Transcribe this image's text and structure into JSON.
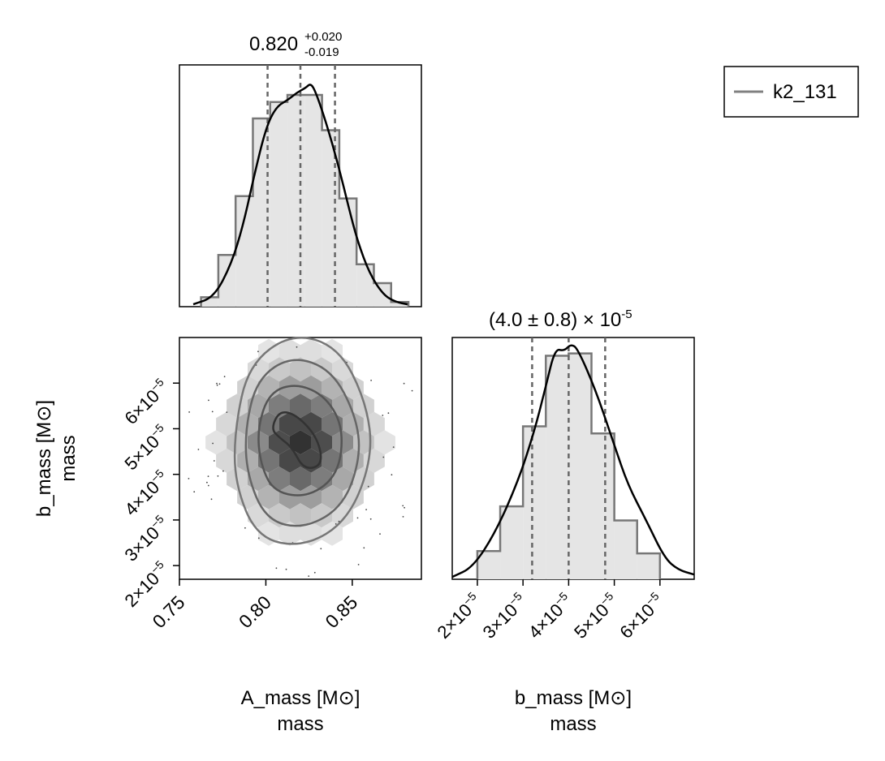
{
  "legend": {
    "label": "k2_131",
    "line_color": "#808080"
  },
  "colors": {
    "hist_fill": "#e5e5e5",
    "hist_edge": "#777777",
    "kde": "#000000",
    "quantile": "#666666",
    "frame": "#000000"
  },
  "labels": {
    "x_axis_a": {
      "line1": "A_mass [M⊙]",
      "line2": "mass"
    },
    "x_axis_b": {
      "line1": "b_mass [M⊙]",
      "line2": "mass"
    },
    "y_axis_b": {
      "line1": "b_mass [M⊙]",
      "line2": "mass"
    }
  },
  "titles": {
    "a_mass": {
      "base": "0.820",
      "sup": "+0.020",
      "sub": "-0.019"
    },
    "b_mass": {
      "base": "(4.0 ± 0.8) × 10",
      "sup": "-5"
    }
  },
  "ticks": {
    "a_mass": [
      "0.75",
      "0.80",
      "0.85"
    ],
    "b_mass": [
      {
        "mant": "2×10",
        "exp": "−5"
      },
      {
        "mant": "3×10",
        "exp": "−5"
      },
      {
        "mant": "4×10",
        "exp": "−5"
      },
      {
        "mant": "5×10",
        "exp": "−5"
      },
      {
        "mant": "6×10",
        "exp": "−5"
      }
    ]
  },
  "chart_data": [
    {
      "type": "histogram",
      "variable": "A_mass",
      "xlim": [
        0.75,
        0.89
      ],
      "bins": [
        0.7625,
        0.7725,
        0.7825,
        0.7925,
        0.8025,
        0.8125,
        0.8225,
        0.8325,
        0.8425,
        0.8525,
        0.8625,
        0.8725,
        0.8825
      ],
      "counts": [
        0.04,
        0.22,
        0.47,
        0.8,
        0.87,
        0.9,
        0.9,
        0.75,
        0.46,
        0.18,
        0.1,
        0.02
      ],
      "kde": [
        [
          0.758,
          0.01
        ],
        [
          0.77,
          0.04
        ],
        [
          0.78,
          0.18
        ],
        [
          0.787,
          0.35
        ],
        [
          0.793,
          0.55
        ],
        [
          0.8,
          0.76
        ],
        [
          0.806,
          0.85
        ],
        [
          0.813,
          0.88
        ],
        [
          0.818,
          0.91
        ],
        [
          0.823,
          0.93
        ],
        [
          0.826,
          0.95
        ],
        [
          0.829,
          0.91
        ],
        [
          0.835,
          0.78
        ],
        [
          0.842,
          0.6
        ],
        [
          0.848,
          0.42
        ],
        [
          0.853,
          0.28
        ],
        [
          0.86,
          0.14
        ],
        [
          0.868,
          0.05
        ],
        [
          0.875,
          0.02
        ],
        [
          0.882,
          0.01
        ]
      ],
      "quantiles": [
        0.801,
        0.82,
        0.84
      ]
    },
    {
      "type": "histogram",
      "variable": "b_mass",
      "xlim": [
        1.45e-05,
        6.75e-05
      ],
      "bins": [
        2e-05,
        2.5e-05,
        3e-05,
        3.5e-05,
        4e-05,
        4.5e-05,
        5e-05,
        5.5e-05,
        6e-05
      ],
      "counts": [
        0.12,
        0.31,
        0.65,
        0.95,
        0.96,
        0.62,
        0.25,
        0.11
      ],
      "kde": [
        [
          1.45e-05,
          0.01
        ],
        [
          1.9e-05,
          0.05
        ],
        [
          2.4e-05,
          0.2
        ],
        [
          2.9e-05,
          0.42
        ],
        [
          3.25e-05,
          0.63
        ],
        [
          3.5e-05,
          0.82
        ],
        [
          3.7e-05,
          0.98
        ],
        [
          3.9e-05,
          0.97
        ],
        [
          4.05e-05,
          1.0
        ],
        [
          4.2e-05,
          0.98
        ],
        [
          4.6e-05,
          0.8
        ],
        [
          5e-05,
          0.57
        ],
        [
          5.3e-05,
          0.4
        ],
        [
          5.7e-05,
          0.25
        ],
        [
          6.1e-05,
          0.09
        ],
        [
          6.4e-05,
          0.04
        ],
        [
          6.75e-05,
          0.02
        ]
      ],
      "quantiles": [
        3.2e-05,
        4e-05,
        4.8e-05
      ]
    },
    {
      "type": "hexbin-contour",
      "x_variable": "A_mass",
      "y_variable": "b_mass",
      "xlim": [
        0.75,
        0.89
      ],
      "ylim": [
        1.7e-05,
        7e-05
      ],
      "contours": [
        {
          "level": "inner",
          "points": [
            [
              0.803,
              5e-05
            ],
            [
              0.808,
              5.4e-05
            ],
            [
              0.818,
              5.3e-05
            ],
            [
              0.83,
              4.8e-05
            ],
            [
              0.833,
              4.2e-05
            ],
            [
              0.822,
              4.1e-05
            ],
            [
              0.815,
              4.6e-05
            ],
            [
              0.808,
              4.8e-05
            ]
          ]
        },
        {
          "level": "mid",
          "points": [
            [
              0.795,
              5e-05
            ],
            [
              0.802,
              5.8e-05
            ],
            [
              0.818,
              6e-05
            ],
            [
              0.835,
              5.7e-05
            ],
            [
              0.845,
              5e-05
            ],
            [
              0.842,
              4e-05
            ],
            [
              0.825,
              3.5e-05
            ],
            [
              0.805,
              3.6e-05
            ],
            [
              0.797,
              4.2e-05
            ]
          ]
        },
        {
          "level": "outer1",
          "points": [
            [
              0.788,
              5e-05
            ],
            [
              0.795,
              6.1e-05
            ],
            [
              0.815,
              6.6e-05
            ],
            [
              0.838,
              6.3e-05
            ],
            [
              0.852,
              5.3e-05
            ],
            [
              0.855,
              4.4e-05
            ],
            [
              0.845,
              3.3e-05
            ],
            [
              0.822,
              2.8e-05
            ],
            [
              0.8,
              3e-05
            ],
            [
              0.789,
              4e-05
            ]
          ]
        },
        {
          "level": "outer2",
          "points": [
            [
              0.782,
              5e-05
            ],
            [
              0.79,
              6.4e-05
            ],
            [
              0.815,
              7.1e-05
            ],
            [
              0.842,
              6.8e-05
            ],
            [
              0.858,
              5.6e-05
            ],
            [
              0.862,
              4.4e-05
            ],
            [
              0.848,
              3e-05
            ],
            [
              0.822,
              2.4e-05
            ],
            [
              0.795,
              2.6e-05
            ],
            [
              0.782,
              3.8e-05
            ]
          ]
        }
      ]
    }
  ]
}
